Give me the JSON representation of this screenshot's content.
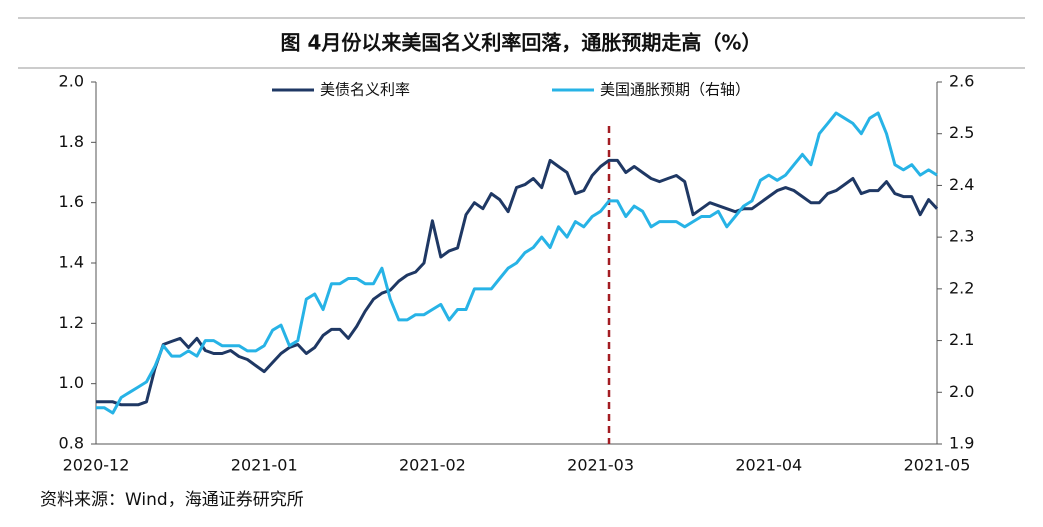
{
  "chart_data": {
    "type": "line",
    "title": "图 4月份以来美国名义利率回落，通胀预期走高（%）",
    "source": "资料来源：Wind，海通证券研究所",
    "categories": [
      "2020-12",
      null,
      null,
      null,
      null,
      null,
      null,
      null,
      null,
      null,
      null,
      null,
      null,
      null,
      null,
      null,
      null,
      null,
      null,
      null,
      "2021-01",
      null,
      null,
      null,
      null,
      null,
      null,
      null,
      null,
      null,
      null,
      null,
      null,
      null,
      null,
      null,
      null,
      null,
      null,
      null,
      "2021-02",
      null,
      null,
      null,
      null,
      null,
      null,
      null,
      null,
      null,
      null,
      null,
      null,
      null,
      null,
      null,
      null,
      null,
      null,
      null,
      "2021-03",
      null,
      null,
      null,
      null,
      null,
      null,
      null,
      null,
      null,
      null,
      null,
      null,
      null,
      null,
      null,
      null,
      null,
      null,
      null,
      "2021-04",
      null,
      null,
      null,
      null,
      null,
      null,
      null,
      null,
      null,
      null,
      null,
      null,
      null,
      null,
      null,
      null,
      null,
      null,
      null,
      "2021-05"
    ],
    "series": [
      {
        "name": "美债名义利率",
        "color": "#1f3864",
        "axis": "y",
        "values": [
          0.94,
          0.94,
          0.94,
          0.93,
          0.93,
          0.93,
          0.94,
          1.05,
          1.13,
          1.14,
          1.15,
          1.12,
          1.15,
          1.11,
          1.1,
          1.1,
          1.11,
          1.09,
          1.08,
          1.06,
          1.04,
          1.07,
          1.1,
          1.12,
          1.13,
          1.1,
          1.12,
          1.16,
          1.18,
          1.18,
          1.15,
          1.19,
          1.24,
          1.28,
          1.3,
          1.31,
          1.34,
          1.36,
          1.37,
          1.4,
          1.54,
          1.42,
          1.44,
          1.45,
          1.56,
          1.6,
          1.58,
          1.63,
          1.61,
          1.57,
          1.65,
          1.66,
          1.68,
          1.65,
          1.74,
          1.72,
          1.7,
          1.63,
          1.64,
          1.69,
          1.72,
          1.74,
          1.74,
          1.7,
          1.72,
          1.7,
          1.68,
          1.67,
          1.68,
          1.69,
          1.67,
          1.56,
          1.58,
          1.6,
          1.59,
          1.58,
          1.57,
          1.58,
          1.58,
          1.6,
          1.62,
          1.64,
          1.65,
          1.64,
          1.62,
          1.6,
          1.6,
          1.63,
          1.64,
          1.66,
          1.68,
          1.63,
          1.64,
          1.64,
          1.67,
          1.63,
          1.62,
          1.62,
          1.56,
          1.61,
          1.58
        ]
      },
      {
        "name": "美国通胀预期（右轴）",
        "color": "#27b3e6",
        "axis": "y2",
        "values": [
          1.97,
          1.97,
          1.96,
          1.99,
          2.0,
          2.01,
          2.02,
          2.05,
          2.09,
          2.07,
          2.07,
          2.08,
          2.07,
          2.1,
          2.1,
          2.09,
          2.09,
          2.09,
          2.08,
          2.08,
          2.09,
          2.12,
          2.13,
          2.09,
          2.1,
          2.18,
          2.19,
          2.16,
          2.21,
          2.21,
          2.22,
          2.22,
          2.21,
          2.21,
          2.24,
          2.18,
          2.14,
          2.14,
          2.15,
          2.15,
          2.16,
          2.17,
          2.14,
          2.16,
          2.16,
          2.2,
          2.2,
          2.2,
          2.22,
          2.24,
          2.25,
          2.27,
          2.28,
          2.3,
          2.28,
          2.32,
          2.3,
          2.33,
          2.32,
          2.34,
          2.35,
          2.37,
          2.37,
          2.34,
          2.36,
          2.35,
          2.32,
          2.33,
          2.33,
          2.33,
          2.32,
          2.33,
          2.34,
          2.34,
          2.35,
          2.32,
          2.34,
          2.36,
          2.37,
          2.41,
          2.42,
          2.41,
          2.42,
          2.44,
          2.46,
          2.44,
          2.5,
          2.52,
          2.54,
          2.53,
          2.52,
          2.5,
          2.53,
          2.54,
          2.5,
          2.44,
          2.43,
          2.44,
          2.42,
          2.43,
          2.42
        ]
      }
    ],
    "vline_index": 61,
    "vline_color": "#a31d23",
    "ylim": [
      0.8,
      2.0
    ],
    "yticks": [
      0.8,
      {
        "value": 1.0,
        "label": "1.0"
      },
      1.2,
      1.4,
      1.6,
      1.8,
      {
        "value": 2.0,
        "label": "2.0"
      }
    ],
    "y2lim": [
      1.9,
      2.6
    ],
    "y2ticks": [
      1.9,
      {
        "value": 2.0,
        "label": "2.0"
      },
      2.1,
      2.2,
      2.3,
      2.4,
      2.5,
      2.6
    ],
    "legend": "top"
  }
}
